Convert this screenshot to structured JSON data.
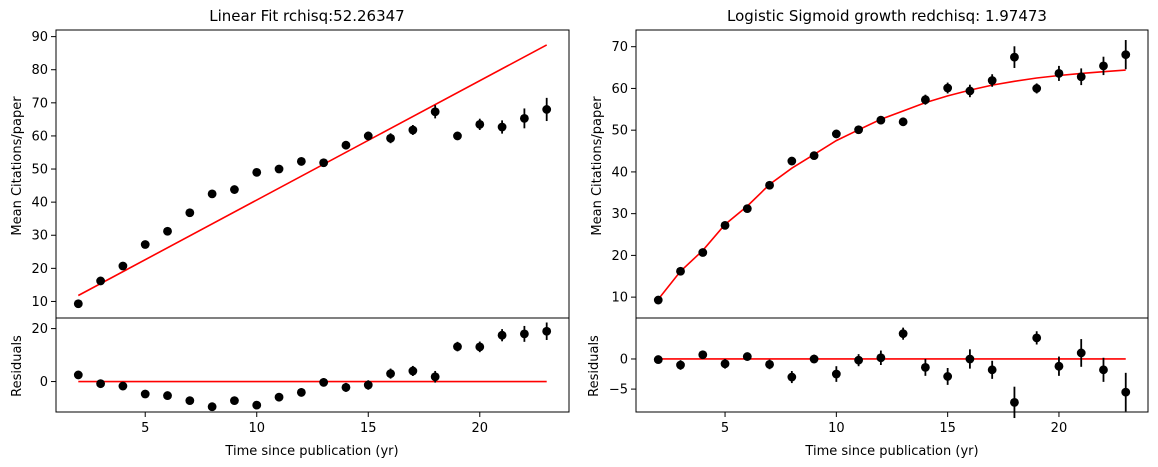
{
  "chart_data": [
    {
      "type": "scatter",
      "title": "Linear Fit rchisq:52.26347",
      "xlabel": "Time since publication (yr)",
      "ylabel": "Mean Citations/paper",
      "xlim": [
        1,
        24
      ],
      "ylim": [
        5,
        92
      ],
      "xticks": [
        5,
        10,
        15,
        20
      ],
      "yticks": [
        10,
        20,
        30,
        40,
        50,
        60,
        70,
        80,
        90
      ],
      "series": [
        {
          "name": "data",
          "style": "black-points-with-errorbars",
          "x": [
            2,
            3,
            4,
            5,
            6,
            7,
            8,
            9,
            10,
            11,
            12,
            13,
            14,
            15,
            16,
            17,
            18,
            19,
            20,
            21,
            22,
            23
          ],
          "y": [
            9.3,
            16.2,
            20.7,
            27.2,
            31.2,
            36.8,
            42.5,
            43.8,
            49.0,
            50.0,
            52.3,
            51.9,
            57.2,
            60.0,
            59.3,
            61.8,
            67.3,
            60.0,
            63.5,
            62.7,
            65.3,
            68.0
          ],
          "yerr": [
            0.6,
            0.8,
            0.6,
            0.7,
            0.6,
            0.7,
            0.8,
            0.7,
            0.8,
            0.9,
            1.0,
            0.9,
            1.2,
            1.3,
            1.5,
            1.5,
            2.0,
            1.2,
            1.7,
            2.0,
            3.0,
            3.5
          ]
        },
        {
          "name": "fit",
          "style": "red-line",
          "x": [
            2,
            23
          ],
          "y": [
            11.8,
            87.5
          ]
        }
      ],
      "residuals": {
        "ylabel": "Residuals",
        "ylim": [
          -11.5,
          24
        ],
        "yticks": [
          0,
          20
        ],
        "x": [
          2,
          3,
          4,
          5,
          6,
          7,
          8,
          9,
          10,
          11,
          12,
          13,
          14,
          15,
          16,
          17,
          18,
          19,
          20,
          21,
          22,
          23
        ],
        "y": [
          2.5,
          -0.8,
          -1.7,
          -4.7,
          -5.3,
          -7.2,
          -9.5,
          -7.2,
          -8.9,
          -5.9,
          -4.1,
          -0.3,
          -2.2,
          -1.3,
          3.0,
          4.0,
          1.8,
          13.2,
          13.1,
          17.5,
          18.0,
          19.0
        ],
        "yerr": [
          1.4,
          1.2,
          1.2,
          1.2,
          1.1,
          1.2,
          1.3,
          1.3,
          1.4,
          1.5,
          1.6,
          1.6,
          1.7,
          1.8,
          1.9,
          1.9,
          2.2,
          1.8,
          2.0,
          2.3,
          3.0,
          3.3
        ],
        "zero_line": [
          0,
          0
        ]
      }
    },
    {
      "type": "scatter",
      "title": "Logistic Sigmoid growth redchisq: 1.97473",
      "xlabel": "Time since publication (yr)",
      "ylabel": "Mean Citations/paper",
      "xlim": [
        1,
        24
      ],
      "ylim": [
        5,
        74
      ],
      "xticks": [
        5,
        10,
        15,
        20
      ],
      "yticks": [
        10,
        20,
        30,
        40,
        50,
        60,
        70
      ],
      "series": [
        {
          "name": "data",
          "style": "black-points-with-errorbars",
          "x": [
            2,
            3,
            4,
            5,
            6,
            7,
            8,
            9,
            10,
            11,
            12,
            13,
            14,
            15,
            16,
            17,
            18,
            19,
            20,
            21,
            22,
            23
          ],
          "y": [
            9.3,
            16.2,
            20.7,
            27.2,
            31.2,
            36.8,
            42.6,
            43.9,
            49.1,
            50.1,
            52.4,
            52.0,
            57.3,
            60.1,
            59.4,
            61.9,
            67.5,
            60.0,
            63.6,
            62.8,
            65.4,
            68.1
          ],
          "yerr": [
            0.6,
            0.8,
            0.6,
            0.7,
            0.6,
            0.7,
            0.8,
            0.7,
            0.8,
            0.9,
            1.0,
            0.9,
            1.2,
            1.3,
            1.5,
            1.5,
            2.6,
            1.2,
            1.8,
            2.0,
            2.2,
            3.5
          ]
        },
        {
          "name": "fit",
          "style": "red-curve",
          "x": [
            2,
            3,
            4,
            5,
            6,
            7,
            8,
            9,
            10,
            11,
            12,
            13,
            14,
            15,
            16,
            17,
            18,
            19,
            20,
            21,
            22,
            23
          ],
          "y": [
            9.5,
            16.2,
            21.2,
            27.4,
            31.8,
            37.0,
            40.9,
            44.2,
            47.5,
            50.1,
            52.6,
            54.6,
            56.6,
            58.2,
            59.6,
            60.8,
            61.7,
            62.5,
            63.1,
            63.6,
            64.0,
            64.4
          ]
        }
      ],
      "residuals": {
        "ylabel": "Residuals",
        "ylim": [
          -8.8,
          6.8
        ],
        "yticks": [
          -5,
          0
        ],
        "x": [
          2,
          3,
          4,
          5,
          6,
          7,
          8,
          9,
          10,
          11,
          12,
          13,
          14,
          15,
          16,
          17,
          18,
          19,
          20,
          21,
          22,
          23
        ],
        "y": [
          -0.1,
          -1.0,
          0.7,
          -0.8,
          0.4,
          -0.9,
          -3.0,
          0.0,
          -2.5,
          -0.2,
          0.2,
          4.2,
          -1.4,
          -2.9,
          0.0,
          -1.8,
          -7.2,
          3.5,
          -1.2,
          1.0,
          -1.8,
          -5.5
        ],
        "yerr": [
          0.6,
          0.8,
          0.6,
          0.8,
          0.6,
          0.8,
          1.0,
          0.7,
          1.3,
          1.0,
          1.2,
          1.0,
          1.4,
          1.4,
          1.6,
          1.5,
          2.6,
          1.1,
          1.6,
          2.3,
          2.0,
          3.2
        ],
        "zero_line": [
          0,
          0
        ]
      }
    }
  ]
}
